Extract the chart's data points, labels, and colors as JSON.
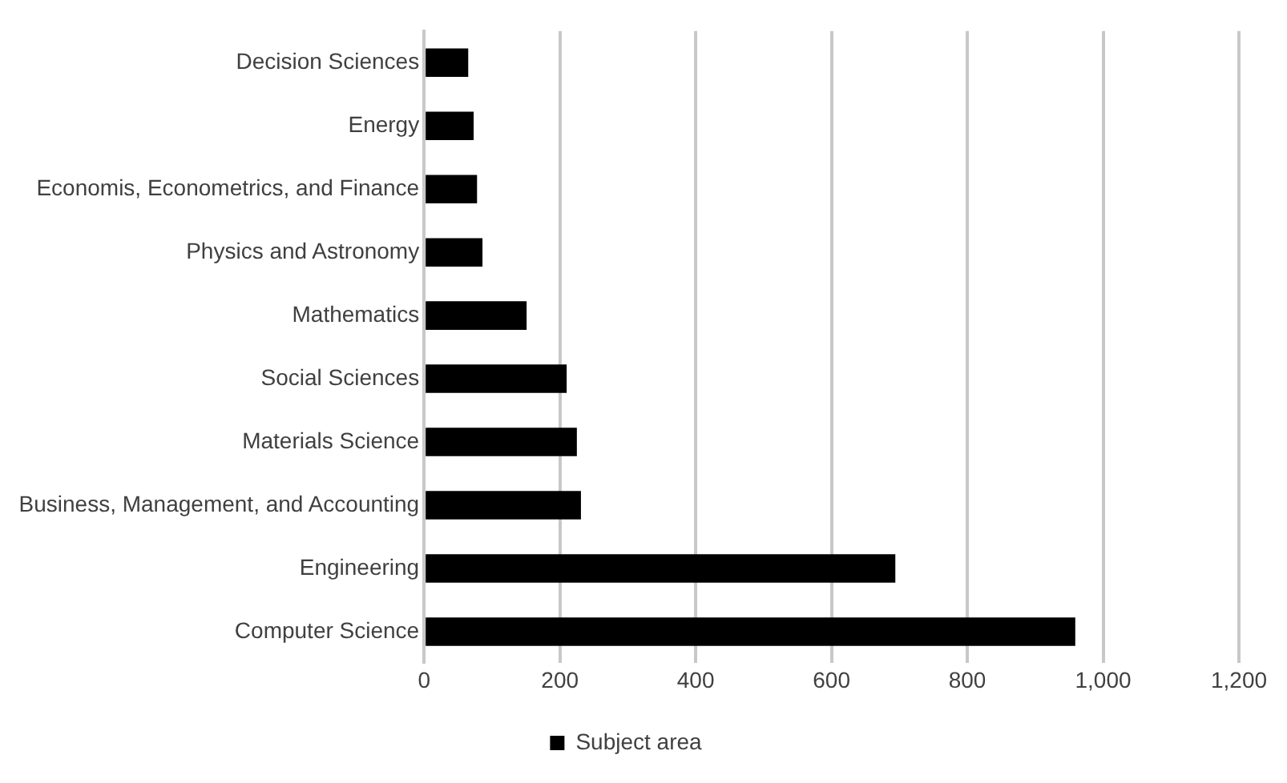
{
  "chart_data": {
    "type": "bar",
    "orientation": "horizontal",
    "categories": [
      "Decision Sciences",
      "Energy",
      "Economis, Econometrics, and Finance",
      "Physics and Astronomy",
      "Mathematics",
      "Social Sciences",
      "Materials Science",
      "Business, Management, and Accounting",
      "Engineering",
      "Computer Science"
    ],
    "series": [
      {
        "name": "Subject area",
        "color": "#000000",
        "values": [
          65,
          73,
          78,
          86,
          151,
          210,
          225,
          231,
          694,
          959
        ]
      }
    ],
    "xlim": [
      0,
      1200
    ],
    "xticks": [
      0,
      {
        "value": 200,
        "label": "200"
      },
      {
        "value": 400,
        "label": "400"
      },
      {
        "value": 600,
        "label": "600"
      },
      {
        "value": 800,
        "label": "800"
      },
      {
        "value": 1000,
        "label": "1,000"
      },
      {
        "value": 1200,
        "label": "1,200"
      }
    ],
    "grid": "x",
    "legend": "bottom"
  }
}
